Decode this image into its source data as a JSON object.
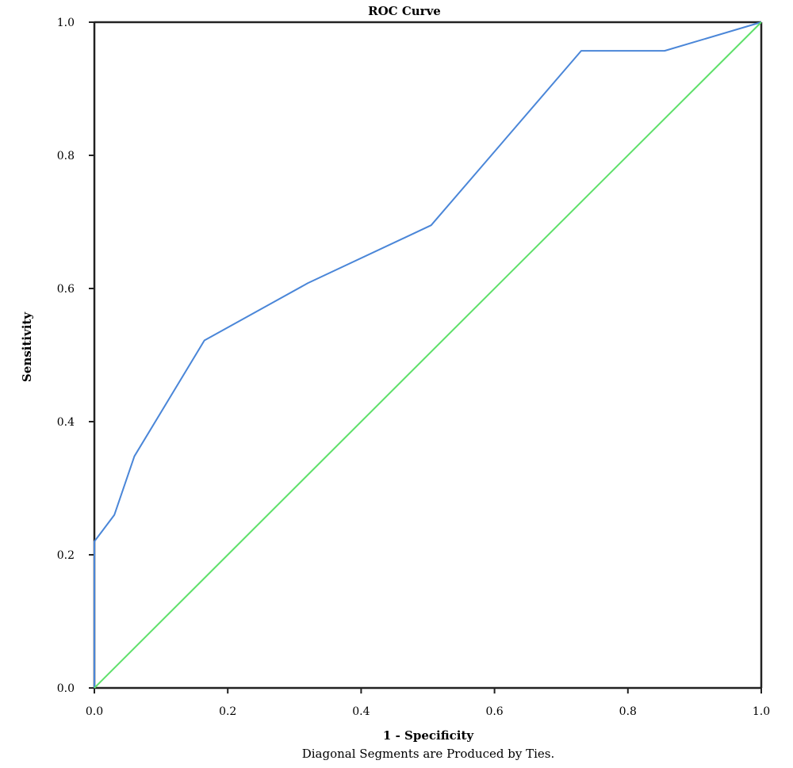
{
  "chart_data": {
    "type": "line",
    "title": "ROC Curve",
    "xlabel": "1 - Specificity",
    "ylabel": "Sensitivity",
    "footnote": "Diagonal Segments are Produced by Ties.",
    "xlim": [
      0.0,
      1.0
    ],
    "ylim": [
      0.0,
      1.0
    ],
    "xticks": [
      "0.0",
      "0.2",
      "0.4",
      "0.6",
      "0.8",
      "1.0"
    ],
    "yticks": [
      "0.0",
      "0.2",
      "0.4",
      "0.6",
      "0.8",
      "1.0"
    ],
    "grid": false,
    "series": [
      {
        "color": "#4a86d8",
        "points": [
          [
            0.0,
            0.0
          ],
          [
            0.0,
            0.22
          ],
          [
            0.03,
            0.26
          ],
          [
            0.06,
            0.348
          ],
          [
            0.165,
            0.522
          ],
          [
            0.32,
            0.608
          ],
          [
            0.505,
            0.695
          ],
          [
            0.73,
            0.957
          ],
          [
            0.855,
            0.957
          ],
          [
            1.0,
            1.0
          ]
        ]
      },
      {
        "color": "#5ee06a",
        "points": [
          [
            0.0,
            0.0
          ],
          [
            1.0,
            1.0
          ]
        ]
      }
    ]
  }
}
